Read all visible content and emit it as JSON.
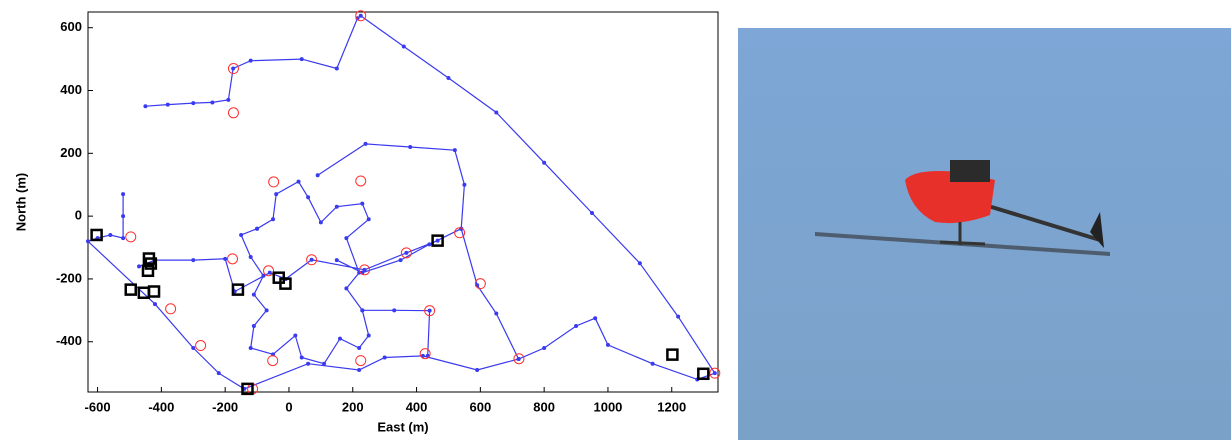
{
  "chart_data": {
    "type": "line",
    "x_label": "East (m)",
    "y_label": "North (m)",
    "xlim": [
      -630,
      1345
    ],
    "ylim": [
      -560,
      650
    ],
    "xticks": [
      -600,
      -400,
      -200,
      0,
      200,
      400,
      600,
      800,
      1000,
      1200
    ],
    "yticks": [
      -400,
      -200,
      0,
      200,
      400,
      600
    ],
    "series": [
      {
        "color": "#3a3af0",
        "marker": "dot",
        "line": true,
        "x": [
          -450,
          -380,
          -300,
          -240,
          -190,
          -175,
          -120,
          40,
          150,
          215,
          225,
          360,
          500,
          650,
          800,
          950,
          1100,
          1220,
          1335,
          1280,
          1140,
          1000,
          960,
          900,
          800,
          720,
          590,
          420,
          300,
          220,
          60,
          -140,
          -220,
          -300,
          -420,
          -630,
          -600,
          -560,
          -520,
          -520,
          -520,
          null,
          -100,
          -50,
          -40,
          30,
          60,
          100,
          150,
          230,
          250,
          180,
          220,
          180,
          230,
          250,
          220,
          160,
          110,
          40,
          20,
          -50,
          -120,
          -110,
          -70,
          -110,
          -80,
          -120,
          -150,
          -100,
          null,
          90,
          240,
          380,
          520,
          550,
          540,
          440,
          350,
          230,
          150,
          null,
          540,
          590,
          650,
          720,
          null,
          230,
          330,
          441,
          435,
          null,
          -470,
          -420,
          -300,
          -200,
          -170,
          -60,
          -10,
          71,
          237,
          368,
          466
        ],
        "values": [
          350,
          355,
          360,
          362,
          370,
          470,
          495,
          500,
          470,
          630,
          638,
          540,
          440,
          330,
          170,
          10,
          -150,
          -320,
          -500,
          -520,
          -470,
          -410,
          -325,
          -350,
          -420,
          -455,
          -490,
          -445,
          -450,
          -490,
          -470,
          -550,
          -500,
          -420,
          -280,
          -80,
          -70,
          -60,
          -70,
          0,
          70,
          null,
          -40,
          -10,
          70,
          110,
          60,
          -20,
          30,
          40,
          -10,
          -70,
          -180,
          -230,
          -300,
          -380,
          -420,
          -390,
          -470,
          -450,
          -380,
          -440,
          -420,
          -350,
          -300,
          -250,
          -190,
          -130,
          -60,
          -40,
          null,
          130,
          230,
          220,
          210,
          100,
          -40,
          -90,
          -140,
          -180,
          -140,
          null,
          -40,
          -220,
          -310,
          -455,
          null,
          -300,
          -300,
          -301,
          -445,
          null,
          -160,
          -140,
          -140,
          -136,
          -240,
          -180,
          -200,
          -139,
          -171,
          -117,
          -78
        ]
      },
      {
        "color": "#ff3030",
        "marker": "circle",
        "line": false,
        "x": [
          225,
          -174,
          -174,
          -48,
          225,
          535,
          368,
          237,
          71,
          -64,
          -177,
          -496,
          -371,
          -277,
          -51,
          225,
          427,
          441,
          600,
          721,
          -114,
          1335
        ],
        "values": [
          638,
          470,
          329,
          109,
          112,
          -53,
          -117,
          -171,
          -139,
          -174,
          -136,
          -66,
          -295,
          -412,
          -460,
          -460,
          -438,
          -301,
          -215,
          -454,
          -550,
          -500
        ]
      },
      {
        "color": "#000000",
        "marker": "square",
        "line": false,
        "x": [
          -603,
          -496,
          -455,
          -423,
          -439,
          -442,
          -160,
          -32,
          -11,
          466,
          1202,
          1299,
          -130,
          -433
        ],
        "values": [
          -60,
          -234,
          -244,
          -240,
          -135,
          -174,
          -234,
          -196,
          -215,
          -78,
          -441,
          -502,
          -550,
          -151
        ]
      }
    ]
  }
}
